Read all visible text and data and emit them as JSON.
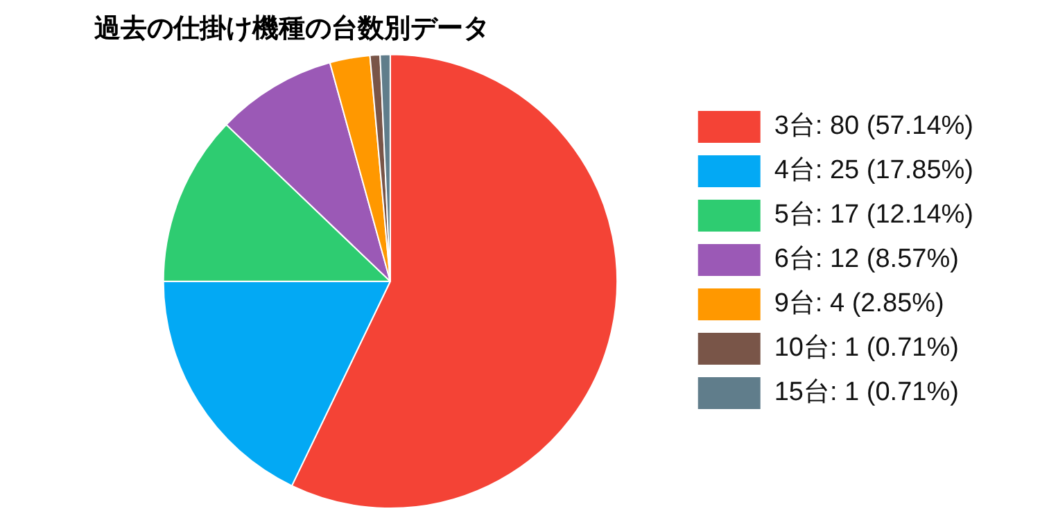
{
  "chart_data": {
    "type": "pie",
    "title": "過去の仕掛け機種の台数別データ",
    "categories": [
      "3台: 80 (57.14%)",
      "4台: 25 (17.85%)",
      "5台: 17 (12.14%)",
      "6台: 12 (8.57%)",
      "9台: 4 (2.85%)",
      "10台: 1 (0.71%)",
      "15台: 1 (0.71%)"
    ],
    "values": [
      80,
      25,
      17,
      12,
      4,
      1,
      1
    ],
    "colors": [
      "#f44336",
      "#03a9f4",
      "#2ecc71",
      "#9b59b6",
      "#ff9800",
      "#795548",
      "#607d8b"
    ],
    "legend": "right"
  }
}
